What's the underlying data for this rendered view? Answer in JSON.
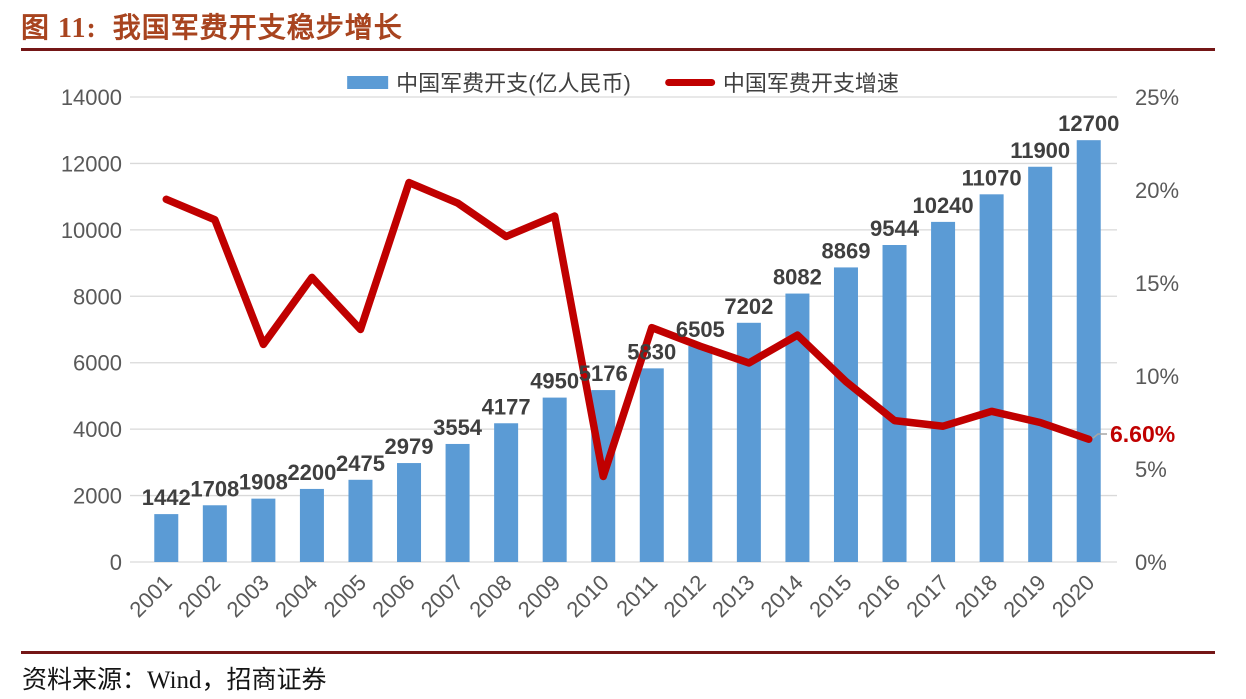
{
  "figure": {
    "title": "图 11:  我国军费开支稳步增长",
    "source": "资料来源：Wind，招商证券"
  },
  "chart_data": {
    "type": "bar",
    "title": "图 11: 我国军费开支稳步增长",
    "categories": [
      "2001",
      "2002",
      "2003",
      "2004",
      "2005",
      "2006",
      "2007",
      "2008",
      "2009",
      "2010",
      "2011",
      "2012",
      "2013",
      "2014",
      "2015",
      "2016",
      "2017",
      "2018",
      "2019",
      "2020"
    ],
    "series": [
      {
        "name": "中国军费开支(亿人民币)",
        "type": "bar",
        "axis": "left",
        "color": "#5B9BD5",
        "values": [
          1442,
          1708,
          1908,
          2200,
          2475,
          2979,
          3554,
          4177,
          4950,
          5176,
          5830,
          6505,
          7202,
          8082,
          8869,
          9544,
          10240,
          11070,
          11900,
          12700
        ]
      },
      {
        "name": "中国军费开支增速",
        "type": "line",
        "axis": "right",
        "color": "#C00000",
        "values": [
          19.5,
          18.4,
          11.7,
          15.3,
          12.5,
          20.4,
          19.3,
          17.5,
          18.6,
          4.6,
          12.6,
          11.6,
          10.7,
          12.2,
          9.7,
          7.6,
          7.3,
          8.1,
          7.5,
          6.6
        ]
      }
    ],
    "left_axis": {
      "min": 0,
      "max": 14000,
      "step": 2000,
      "ticks": [
        "0",
        "2000",
        "4000",
        "6000",
        "8000",
        "10000",
        "12000",
        "14000"
      ]
    },
    "right_axis": {
      "min": 0,
      "max": 25,
      "step": 5,
      "ticks": [
        "0%",
        "5%",
        "10%",
        "15%",
        "20%",
        "25%"
      ]
    },
    "end_label": {
      "text": "6.60%",
      "color": "#C00000"
    },
    "grid": true,
    "legend_position": "top",
    "colors": {
      "grid": "#D9D9D9",
      "axis_text": "#595959",
      "bar_label_text": "#3F3F3F",
      "leader": "#A6A6A6"
    }
  }
}
